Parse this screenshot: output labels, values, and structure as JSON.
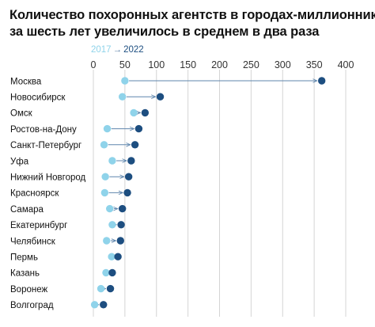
{
  "title_line1": "Количество похоронных агентств в городах-миллионниках",
  "title_line2": "за шесть лет увеличилось в среднем в два раза",
  "legend": {
    "from": "2017",
    "arrow": "→",
    "to": "2022"
  },
  "colors": {
    "from": "#8fd3ea",
    "to": "#1d4e80",
    "connector": "#5f86ad",
    "grid": "#d4d4d4",
    "text": "#111111"
  },
  "chart_data": {
    "type": "dumbbell",
    "title": "Количество похоронных агентств в городах-миллионниках за шесть лет увеличилось в среднем в два раза",
    "xlim": [
      0,
      400
    ],
    "xticks": [
      0,
      50,
      100,
      150,
      200,
      250,
      300,
      350,
      400
    ],
    "grid": true,
    "legend_position": "top-left",
    "series": [
      {
        "name": "2017",
        "key": "v2017"
      },
      {
        "name": "2022",
        "key": "v2022"
      }
    ],
    "categories": [
      "Москва",
      "Новосибирск",
      "Омск",
      "Ростов-на-Дону",
      "Санкт-Петербург",
      "Уфа",
      "Нижний Новгород",
      "Красноярск",
      "Самара",
      "Екатеринбург",
      "Челябинск",
      "Пермь",
      "Казань",
      "Воронеж",
      "Волгоград"
    ],
    "v2017": [
      50,
      46,
      64,
      22,
      17,
      30,
      19,
      18,
      26,
      30,
      21,
      29,
      20,
      12,
      2
    ],
    "v2022": [
      362,
      106,
      82,
      72,
      66,
      60,
      56,
      54,
      46,
      44,
      43,
      39,
      30,
      27,
      16
    ]
  }
}
